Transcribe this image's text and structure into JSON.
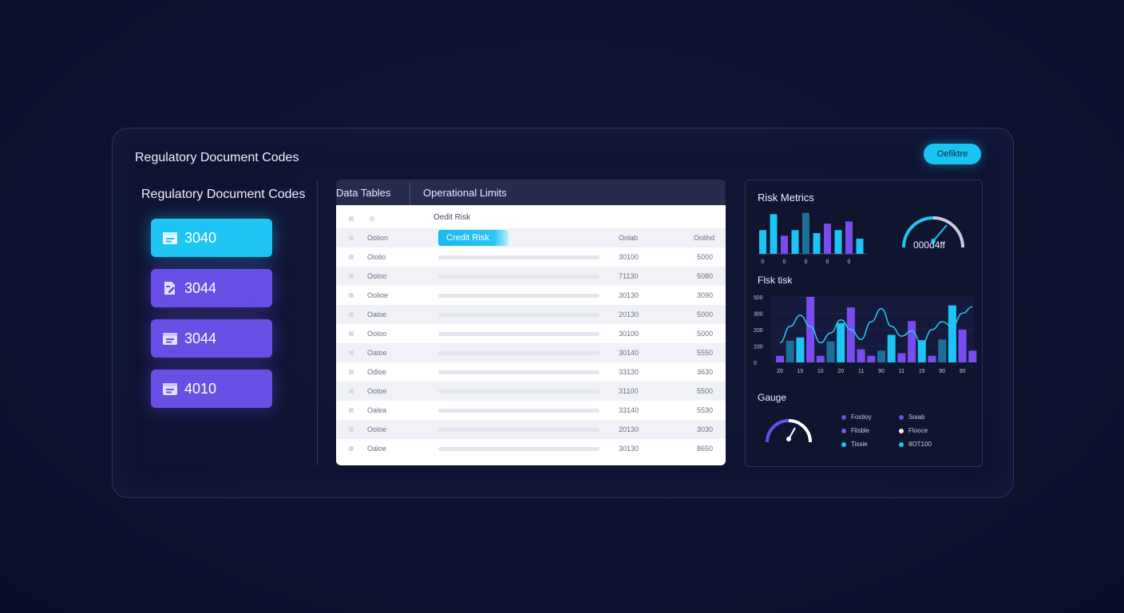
{
  "header": {
    "title": "Regulatory Document Codes",
    "action_button": "Oefiktre"
  },
  "sidebar": {
    "title": "Regulatory Document Codes",
    "codes": [
      {
        "label": "3040",
        "color": "#1ec4f3",
        "icon": "document-icon"
      },
      {
        "label": "3044",
        "color": "#6a4fe6",
        "icon": "edit-document-icon"
      },
      {
        "label": "3044",
        "color": "#6a4fe6",
        "icon": "document-icon"
      },
      {
        "label": "4010",
        "color": "#6a4fe6",
        "icon": "document-icon"
      }
    ]
  },
  "table": {
    "tabs": [
      "Data Tables",
      "Operational Limits"
    ],
    "header_label": "Oedit Risk",
    "column_headers": {
      "name": "Oolion",
      "selected": "Credit Risk",
      "v1": "Oolab",
      "v2": "Oolihd"
    },
    "rows": [
      {
        "name": "Ololio",
        "v1": "30100",
        "v2": "5000"
      },
      {
        "name": "Ooloo",
        "v1": "71130",
        "v2": "5080"
      },
      {
        "name": "Oolioe",
        "v1": "30130",
        "v2": "3090"
      },
      {
        "name": "Oaloe",
        "v1": "20130",
        "v2": "5000"
      },
      {
        "name": "Ooloo",
        "v1": "30100",
        "v2": "5000"
      },
      {
        "name": "Oatoe",
        "v1": "30140",
        "v2": "5550"
      },
      {
        "name": "Odioe",
        "v1": "33130",
        "v2": "3630"
      },
      {
        "name": "Ootoe",
        "v1": "31100",
        "v2": "5500"
      },
      {
        "name": "Oalea",
        "v1": "33140",
        "v2": "5530"
      },
      {
        "name": "Ooloe",
        "v1": "20130",
        "v2": "3030"
      },
      {
        "name": "Oaloe",
        "v1": "30130",
        "v2": "8650"
      }
    ]
  },
  "panel": {
    "risk_metrics_title": "Risk Metrics",
    "gauge_value": "000d4ff",
    "risk_chart_title": "Flsk tisk",
    "gauge_title": "Gauge",
    "legend": [
      {
        "label": "Fostioy",
        "color": "#6a4fe6"
      },
      {
        "label": "Soiab",
        "color": "#6a4fe6"
      },
      {
        "label": "Flisble",
        "color": "#7a5cf0"
      },
      {
        "label": "Flooce",
        "color": "#f4efe6"
      },
      {
        "label": "Tissie",
        "color": "#1ec4f3"
      },
      {
        "label": "8OT100",
        "color": "#1ec4f3"
      }
    ]
  },
  "chart_data": [
    {
      "type": "bar",
      "title": "Risk Metrics",
      "categories": [
        "0",
        "",
        "0",
        "",
        "0",
        "",
        "0",
        "",
        "0",
        ""
      ],
      "values": [
        0.55,
        0.92,
        0.42,
        0.55,
        0.95,
        0.48,
        0.7,
        0.55,
        0.75,
        0.35
      ],
      "colors": [
        "#1ec4f3",
        "#1ec4f3",
        "#7a4cf0",
        "#1ec4f3",
        "#1e6f9a",
        "#1ec4f3",
        "#7a4cf0",
        "#1ec4f3",
        "#7a4cf0",
        "#1ec4f3"
      ]
    },
    {
      "type": "bar",
      "title": "Flsk tisk",
      "ylabels": [
        "500",
        "300",
        "200",
        "100",
        "0"
      ],
      "categories": [
        "20",
        "",
        "15",
        "",
        "10",
        "",
        "20",
        "",
        "11",
        "",
        "90",
        "",
        "11",
        "",
        "15",
        "",
        "90",
        "",
        "90",
        ""
      ],
      "values": [
        0.1,
        0.33,
        0.38,
        1.0,
        0.1,
        0.32,
        0.6,
        0.84,
        0.2,
        0.1,
        0.18,
        0.42,
        0.14,
        0.63,
        0.34,
        0.1,
        0.35,
        0.87,
        0.5,
        0.18
      ],
      "colors": [
        "#7a4cf0",
        "#1e6f9a",
        "#1ec4f3",
        "#7a4cf0",
        "#7a4cf0",
        "#1e6f9a",
        "#1ec4f3",
        "#7a4cf0",
        "#7a4cf0",
        "#7a4cf0",
        "#1e6f9a",
        "#1ec4f3",
        "#7a4cf0",
        "#7a4cf0",
        "#1ec4f3",
        "#7a4cf0",
        "#1e6f9a",
        "#1ec4f3",
        "#7a4cf0",
        "#7a4cf0"
      ],
      "line": [
        0.3,
        0.55,
        0.72,
        0.55,
        0.3,
        0.45,
        0.65,
        0.5,
        0.35,
        0.62,
        0.82,
        0.55,
        0.4,
        0.48,
        0.28,
        0.5,
        0.62,
        0.55,
        0.75,
        0.85
      ]
    }
  ]
}
